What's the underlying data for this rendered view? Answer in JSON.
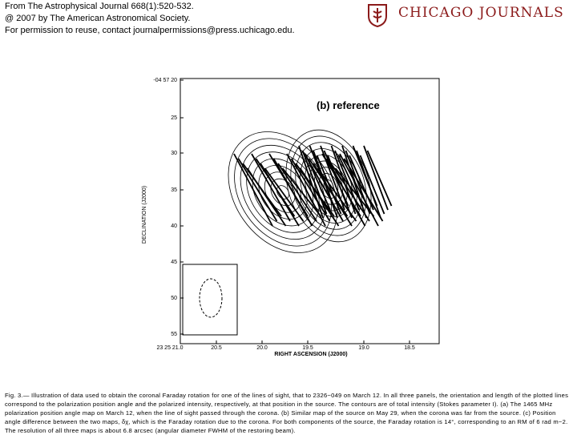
{
  "header": {
    "source": "From The Astrophysical Journal 668(1):520-532.",
    "copyright": "@ 2007 by The American Astronomical Society.",
    "permission": "For permission to reuse, contact journalpermissions@press.uchicago.edu.",
    "logo": "CHICAGO JOURNALS"
  },
  "figure": {
    "panel_label": "(b) reference",
    "y_axis_label": "DECLINATION (J2000)",
    "x_axis_label": "RIGHT ASCENSION (J2000)",
    "y_tick_labels": [
      "-04 57 20",
      "25",
      "30",
      "35",
      "40",
      "45",
      "50",
      "55"
    ],
    "x_tick_labels": [
      "23 25 21.0",
      "20.5",
      "20.0",
      "19.5",
      "19.0",
      "18.5"
    ]
  },
  "caption": "Fig. 3.— Illustration of data used to obtain the coronal Faraday rotation for one of the lines of sight, that to 2326−049 on March 12. In all three panels, the orientation and length of the plotted lines correspond to the polarization position angle and the polarized intensity, respectively, at that position in the source. The contours are of total intensity (Stokes parameter I). (a) The 1465 MHz polarization position angle map on March 12, when the line of sight passed through the corona. (b) Similar map of the source on May 29, when the corona was far from the source. (c) Position angle difference between the two maps, δχ, which is the Faraday rotation due to the corona. For both components of the source, the Faraday rotation is 14°, corresponding to an RM of 6 rad m−2. The resolution of all three maps is about 6.8 arcsec (angular diameter FWHM of the restoring beam)."
}
